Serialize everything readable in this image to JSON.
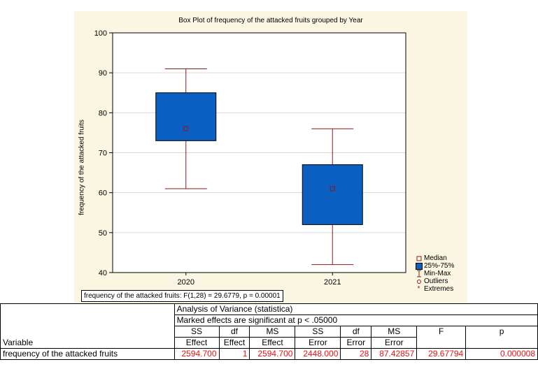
{
  "chart_data": {
    "type": "box",
    "title": "Box Plot of frequency of the attacked fruits grouped by Year",
    "ylabel": "frequency of the attacked fruits",
    "xlabel": "",
    "ylim": [
      40,
      100
    ],
    "yticks": [
      40,
      50,
      60,
      70,
      80,
      90,
      100
    ],
    "grid": true,
    "categories": [
      "2020",
      "2021"
    ],
    "boxes": [
      {
        "category": "2020",
        "min": 61,
        "q1": 73,
        "median": 76,
        "q3": 85,
        "max": 91
      },
      {
        "category": "2021",
        "min": 42,
        "q1": 52,
        "median": 61,
        "q3": 67,
        "max": 76
      }
    ],
    "legend_position": "bottom-right",
    "legend": [
      "Median",
      "25%-75%",
      "Min-Max",
      "Outliers",
      "Extremes"
    ],
    "annotation": "frequency of the attacked fruits:  F(1,28) = 29.6779, p = 0.00001",
    "colors": {
      "box_fill": "#0b5fc0",
      "box_edge": "#000000",
      "whisker": "#8b1a1a",
      "median_marker": "#8b1a1a",
      "background": "#fbf6e2",
      "grid": "#d9d9d9"
    }
  },
  "anova": {
    "title": "Analysis of Variance (statistica)",
    "subtitle": "Marked effects are significant at p < .05000",
    "variable_header": "Variable",
    "col_top": [
      "SS",
      "df",
      "MS",
      "SS",
      "df",
      "MS",
      "F",
      "p"
    ],
    "col_bottom": [
      "Effect",
      "Effect",
      "Effect",
      "Error",
      "Error",
      "Error",
      "",
      ""
    ],
    "row": {
      "variable": "frequency of the attacked fruits",
      "values": [
        "2594.700",
        "1",
        "2594.700",
        "2448.000",
        "28",
        "87.42857",
        "29.67794",
        "0.000008"
      ]
    },
    "highlight_color": "#e8110f"
  }
}
